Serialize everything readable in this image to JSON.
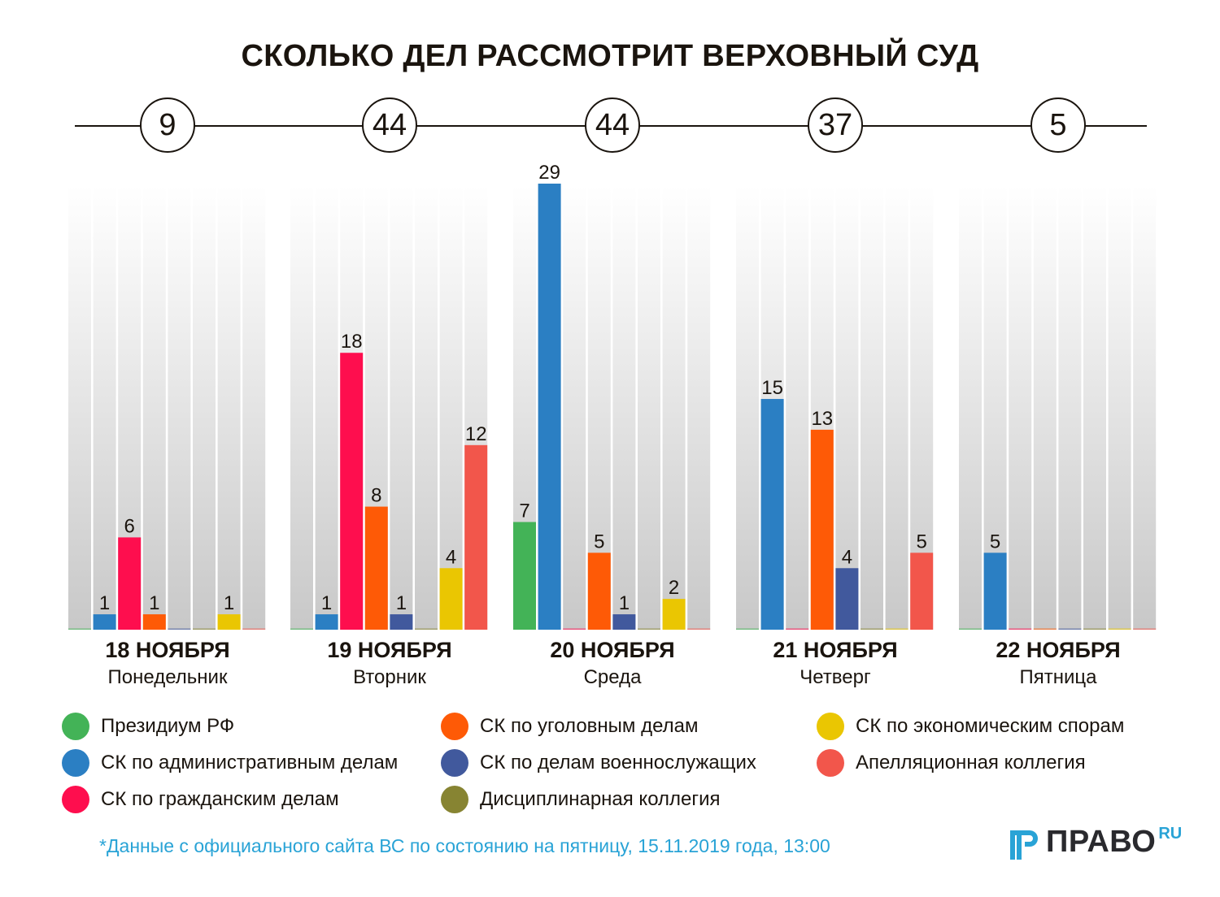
{
  "chart_data": {
    "type": "bar",
    "title": "СКОЛЬКО ДЕЛ РАССМОТРИТ ВЕРХОВНЫЙ СУД",
    "xlabel": "",
    "ylabel": "",
    "ylim": [
      0,
      29
    ],
    "grid": false,
    "legend_position": "bottom",
    "categories": [
      {
        "date": "18 НОЯБРЯ",
        "weekday": "Понедельник",
        "total": 9
      },
      {
        "date": "19 НОЯБРЯ",
        "weekday": "Вторник",
        "total": 44
      },
      {
        "date": "20 НОЯБРЯ",
        "weekday": "Среда",
        "total": 44
      },
      {
        "date": "21 НОЯБРЯ",
        "weekday": "Четверг",
        "total": 37
      },
      {
        "date": "22 НОЯБРЯ",
        "weekday": "Пятница",
        "total": 5
      }
    ],
    "series": [
      {
        "name": "Президиум РФ",
        "color": "#43b357",
        "values": [
          0,
          0,
          7,
          0,
          0
        ]
      },
      {
        "name": "СК по административным делам",
        "color": "#2b7fc3",
        "values": [
          1,
          1,
          29,
          15,
          5
        ]
      },
      {
        "name": "СК по гражданским делам",
        "color": "#fe0e4e",
        "values": [
          6,
          18,
          0,
          0,
          0
        ]
      },
      {
        "name": "СК по уголовным делам",
        "color": "#fe5a06",
        "values": [
          1,
          8,
          5,
          13,
          0
        ]
      },
      {
        "name": "СК по делам военнослужащих",
        "color": "#41599d",
        "values": [
          0,
          1,
          1,
          4,
          0
        ]
      },
      {
        "name": "Дисциплинарная коллегия",
        "color": "#878432",
        "values": [
          0,
          0,
          0,
          0,
          0
        ]
      },
      {
        "name": "СК по экономическим спорам",
        "color": "#eac602",
        "values": [
          1,
          4,
          2,
          0,
          0
        ]
      },
      {
        "name": "Апелляционная коллегия",
        "color": "#f2564b",
        "values": [
          0,
          12,
          0,
          5,
          0
        ]
      }
    ]
  },
  "legend": {
    "columns": [
      [
        0,
        1,
        2
      ],
      [
        3,
        4,
        5
      ],
      [
        6,
        7
      ]
    ]
  },
  "footnote": "*Данные с официального сайта ВС по состоянию на пятницу, 15.11.2019 года, 13:00",
  "logo": {
    "name": "ПРАВО",
    "suffix": "RU",
    "accent_color": "#29a3d6"
  }
}
